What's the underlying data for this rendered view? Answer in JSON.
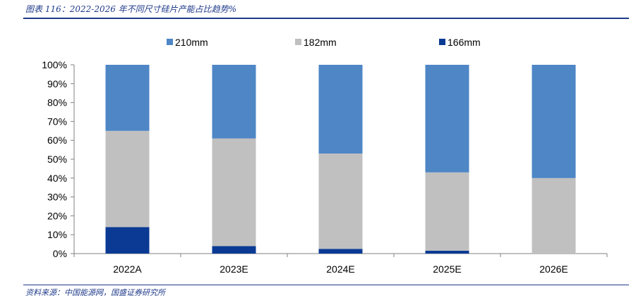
{
  "header": {
    "title": "图表 116：2022-2026 年不同尺寸硅片产能占比趋势%"
  },
  "footer": {
    "source": "资料来源：中国能源网，国盛证券研究所"
  },
  "colors": {
    "210mm": "#4e86c6",
    "182mm": "#c0c0c0",
    "166mm": "#0a3a94",
    "rule": "#1f3a8a"
  },
  "chart_data": {
    "type": "bar",
    "stacked": true,
    "categories": [
      "2022A",
      "2023E",
      "2024E",
      "2025E",
      "2026E"
    ],
    "series": [
      {
        "name": "166mm",
        "values": [
          14,
          4,
          2.5,
          1.5,
          0
        ]
      },
      {
        "name": "182mm",
        "values": [
          51,
          57,
          50.5,
          41.5,
          40
        ]
      },
      {
        "name": "210mm",
        "values": [
          35,
          39,
          47,
          57,
          60
        ]
      }
    ],
    "legend_order": [
      "210mm",
      "182mm",
      "166mm"
    ],
    "legend_position": "top",
    "ylim": [
      0,
      100
    ],
    "yticks": [
      "0%",
      "10%",
      "20%",
      "30%",
      "40%",
      "50%",
      "60%",
      "70%",
      "80%",
      "90%",
      "100%"
    ],
    "grid": false
  }
}
